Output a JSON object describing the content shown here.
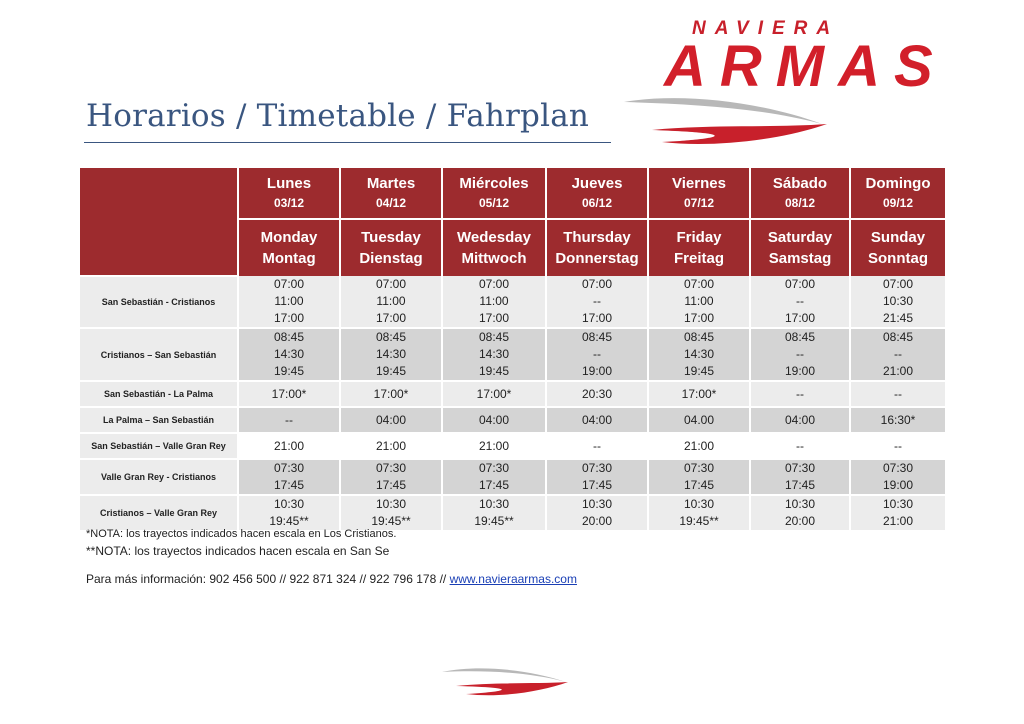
{
  "brand": {
    "top": "NAVIERA",
    "name": "ARMAS"
  },
  "title": "Horarios / Timetable / Fahrplan",
  "days": [
    {
      "es": "Lunes",
      "date": "03/12",
      "en": "Monday",
      "de": "Montag"
    },
    {
      "es": "Martes",
      "date": "04/12",
      "en": "Tuesday",
      "de": "Dienstag"
    },
    {
      "es": "Miércoles",
      "date": "05/12",
      "en": "Wedesday",
      "de": "Mittwoch"
    },
    {
      "es": "Jueves",
      "date": "06/12",
      "en": "Thursday",
      "de": "Donnerstag"
    },
    {
      "es": "Viernes",
      "date": "07/12",
      "en": "Friday",
      "de": "Freitag"
    },
    {
      "es": "Sábado",
      "date": "08/12",
      "en": "Saturday",
      "de": "Samstag"
    },
    {
      "es": "Domingo",
      "date": "09/12",
      "en": "Sunday",
      "de": "Sonntag"
    }
  ],
  "routes": [
    {
      "name": "San Sebastián - Cristianos",
      "rows": [
        [
          "07:00",
          "07:00",
          "07:00",
          "07:00",
          "07:00",
          "07:00",
          "07:00"
        ],
        [
          "11:00",
          "11:00",
          "11:00",
          "--",
          "11:00",
          "--",
          "10:30"
        ],
        [
          "17:00",
          "17:00",
          "17:00",
          "17:00",
          "17:00",
          "17:00",
          "21:45"
        ]
      ]
    },
    {
      "name": "Cristianos – San Sebastián",
      "rows": [
        [
          "08:45",
          "08:45",
          "08:45",
          "08:45",
          "08:45",
          "08:45",
          "08:45"
        ],
        [
          "14:30",
          "14:30",
          "14:30",
          "--",
          "14:30",
          "--",
          "--"
        ],
        [
          "19:45",
          "19:45",
          "19:45",
          "19:00",
          "19:45",
          "19:00",
          "21:00"
        ]
      ]
    },
    {
      "name": "San Sebastián - La Palma",
      "rows": [
        [
          "17:00*",
          "17:00*",
          "17:00*",
          "20:30",
          "17:00*",
          "--",
          "--"
        ]
      ]
    },
    {
      "name": "La Palma – San Sebastián",
      "rows": [
        [
          "--",
          "04:00",
          "04:00",
          "04:00",
          "04.00",
          "04:00",
          "16:30*"
        ]
      ]
    },
    {
      "name": "San Sebastián – Valle Gran Rey",
      "rows": [
        [
          "21:00",
          "21:00",
          "21:00",
          "--",
          "21:00",
          "--",
          "--"
        ]
      ]
    },
    {
      "name": "Valle Gran Rey - Cristianos",
      "rows": [
        [
          "07:30",
          "07:30",
          "07:30",
          "07:30",
          "07:30",
          "07:30",
          "07:30"
        ],
        [
          "17:45",
          "17:45",
          "17:45",
          "17:45",
          "17:45",
          "17:45",
          "19:00"
        ]
      ]
    },
    {
      "name": "Cristianos – Valle Gran Rey",
      "rows": [
        [
          "10:30",
          "10:30",
          "10:30",
          "10:30",
          "10:30",
          "10:30",
          "10:30"
        ],
        [
          "19:45**",
          "19:45**",
          "19:45**",
          "20:00",
          "19:45**",
          "20:00",
          "21:00"
        ]
      ]
    }
  ],
  "notes": {
    "note1": "*NOTA: los trayectos indicados hacen escala en Los Cristianos.",
    "note2": "**NOTA: los trayectos indicados hacen escala en San Se",
    "info_prefix": "Para más información: 902 456 500 // 922 871 324 // 922 796 178 // ",
    "info_link": "www.navieraarmas.com"
  },
  "colors": {
    "header": "#9d2b2e",
    "brand": "#d21f2a",
    "title": "#3a5680"
  }
}
